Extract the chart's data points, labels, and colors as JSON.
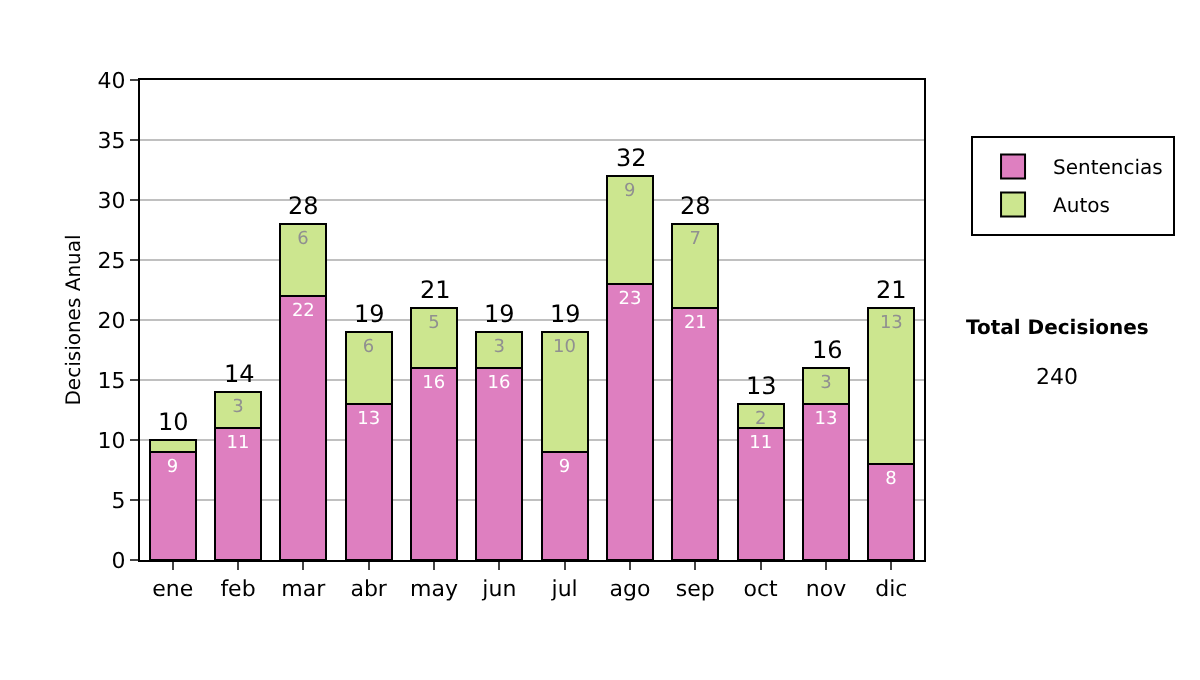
{
  "chart_data": {
    "type": "bar",
    "stacked": true,
    "ylabel": "Decisiones Anual",
    "categories": [
      "ene",
      "feb",
      "mar",
      "abr",
      "may",
      "jun",
      "jul",
      "ago",
      "sep",
      "oct",
      "nov",
      "dic"
    ],
    "series": [
      {
        "name": "Sentencias",
        "color": "#de7fc0",
        "values": [
          9,
          11,
          22,
          13,
          16,
          16,
          9,
          23,
          21,
          11,
          13,
          8
        ],
        "value_labels": [
          "9",
          "11",
          "22",
          "13",
          "16",
          "16",
          "9",
          "23",
          "21",
          "11",
          "13",
          "8"
        ]
      },
      {
        "name": "Autos",
        "color": "#cce68f",
        "values": [
          1,
          3,
          6,
          6,
          5,
          3,
          10,
          9,
          7,
          2,
          3,
          13
        ],
        "value_labels": [
          null,
          "3",
          "6",
          "6",
          "5",
          "3",
          "10",
          "9",
          "7",
          "2",
          "3",
          "13"
        ]
      }
    ],
    "totals": [
      "10",
      "14",
      "28",
      "19",
      "21",
      "19",
      "19",
      "32",
      "28",
      "13",
      "16",
      "21"
    ],
    "ylim": [
      0,
      40
    ],
    "yticks": [
      0,
      5,
      10,
      15,
      20,
      25,
      30,
      35,
      40
    ],
    "grid": "y",
    "legend": "right",
    "annotations": [
      "Total Decisiones",
      "240"
    ]
  }
}
